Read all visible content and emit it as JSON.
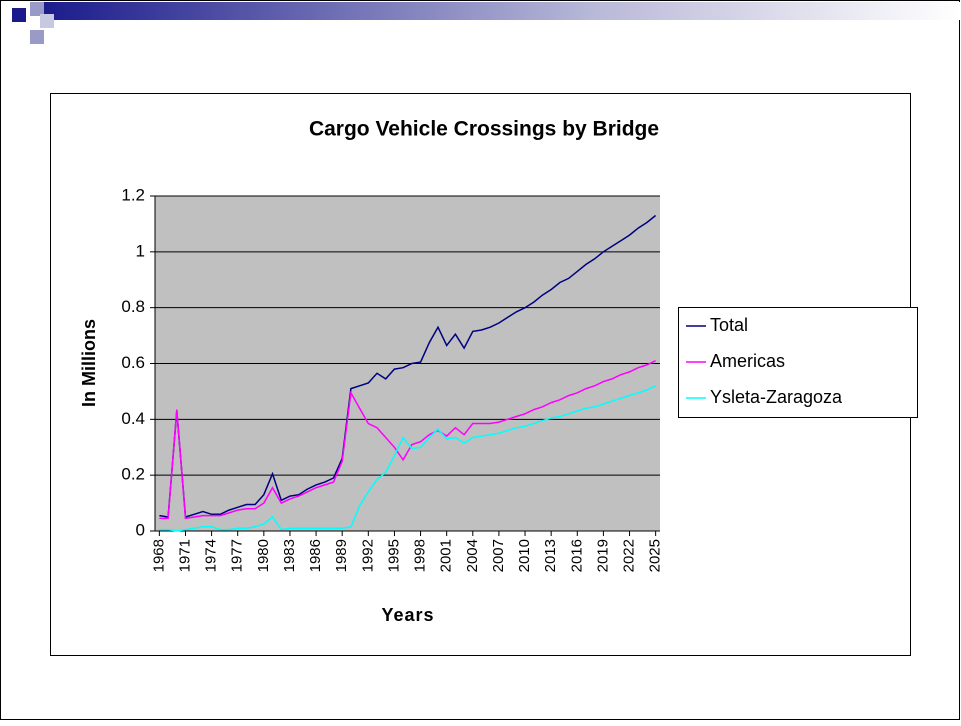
{
  "chart_data": {
    "type": "line",
    "title": "Cargo Vehicle Crossings by Bridge",
    "x_label": "Years",
    "y_label": "In Millions",
    "categories": [
      1968,
      null,
      null,
      1971,
      null,
      null,
      1974,
      null,
      null,
      1977,
      null,
      null,
      1980,
      null,
      null,
      1983,
      null,
      null,
      1986,
      null,
      null,
      1989,
      null,
      null,
      1992,
      null,
      null,
      1995,
      null,
      null,
      1998,
      null,
      null,
      2001,
      null,
      null,
      2004,
      null,
      null,
      2007,
      null,
      null,
      2010,
      null,
      null,
      2013,
      null,
      null,
      2016,
      null,
      null,
      2019,
      null,
      null,
      2022,
      null,
      null,
      2025
    ],
    "series": [
      {
        "name": "Total",
        "color": "#000080",
        "values": [
          0.055,
          0.05,
          0.43,
          0.05,
          0.06,
          0.07,
          0.06,
          0.06,
          0.075,
          0.085,
          0.095,
          0.095,
          0.13,
          0.205,
          0.11,
          0.125,
          0.13,
          0.15,
          0.165,
          0.175,
          0.19,
          0.26,
          0.51,
          0.52,
          0.53,
          0.565,
          0.545,
          0.58,
          0.585,
          0.6,
          0.605,
          0.675,
          0.73,
          0.665,
          0.705,
          0.655,
          0.715,
          0.72,
          0.73,
          0.745,
          0.765,
          0.785,
          0.8,
          0.82,
          0.845,
          0.865,
          0.89,
          0.905,
          0.93,
          0.955,
          0.975,
          1.0,
          1.02,
          1.04,
          1.06,
          1.085,
          1.105,
          1.13
        ]
      },
      {
        "name": "Americas",
        "color": "#ff00ff",
        "values": [
          0.045,
          0.045,
          0.435,
          0.045,
          0.05,
          0.055,
          0.055,
          0.055,
          0.065,
          0.075,
          0.08,
          0.08,
          0.1,
          0.155,
          0.1,
          0.115,
          0.125,
          0.14,
          0.155,
          0.165,
          0.175,
          0.25,
          0.495,
          0.44,
          0.385,
          0.37,
          0.335,
          0.3,
          0.255,
          0.31,
          0.32,
          0.345,
          0.36,
          0.34,
          0.37,
          0.345,
          0.385,
          0.385,
          0.385,
          0.39,
          0.4,
          0.41,
          0.42,
          0.435,
          0.445,
          0.46,
          0.47,
          0.485,
          0.495,
          0.51,
          0.52,
          0.535,
          0.545,
          0.56,
          0.57,
          0.585,
          0.595,
          0.61
        ]
      },
      {
        "name": "Ysleta-Zaragoza",
        "color": "#00ffff",
        "values": [
          0.005,
          0.005,
          0,
          0.005,
          0.01,
          0.015,
          0.015,
          0.005,
          0.005,
          0.01,
          0.01,
          0.015,
          0.025,
          0.05,
          0.005,
          0.01,
          0.01,
          0.01,
          0.01,
          0.01,
          0.01,
          0.01,
          0.015,
          0.09,
          0.14,
          0.185,
          0.21,
          0.27,
          0.335,
          0.295,
          0.3,
          0.335,
          0.365,
          0.33,
          0.335,
          0.315,
          0.335,
          0.34,
          0.345,
          0.35,
          0.36,
          0.37,
          0.375,
          0.385,
          0.395,
          0.405,
          0.41,
          0.42,
          0.43,
          0.44,
          0.445,
          0.455,
          0.465,
          0.475,
          0.485,
          0.495,
          0.505,
          0.52
        ]
      }
    ],
    "ylim": [
      0,
      1.2
    ],
    "yticks": [
      0,
      0.2,
      0.4,
      0.6,
      0.8,
      1,
      1.2
    ],
    "grid": true,
    "legend": "right"
  }
}
